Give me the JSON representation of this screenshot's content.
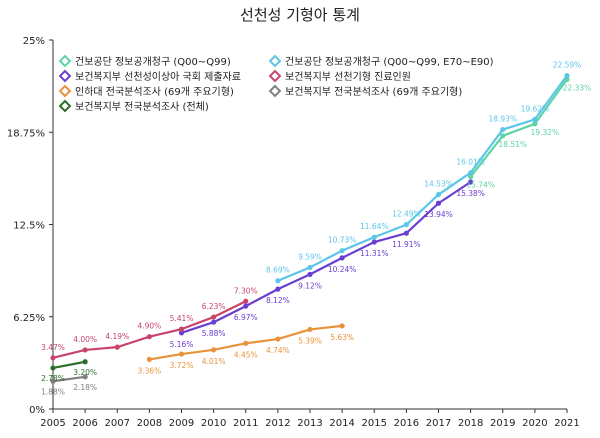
{
  "chart_data": {
    "type": "line",
    "title": "선천성 기형아 통계",
    "xlabel": "",
    "ylabel": "",
    "x": [
      "2005",
      "2006",
      "2007",
      "2008",
      "2009",
      "2010",
      "2011",
      "2012",
      "2013",
      "2014",
      "2015",
      "2016",
      "2017",
      "2018",
      "2019",
      "2020",
      "2021"
    ],
    "y_ticks": [
      "0%",
      "6.25%",
      "12.5%",
      "18.75%",
      "25%"
    ],
    "ylim": [
      0,
      25
    ],
    "grid": false,
    "legend_position": "top-left",
    "series": [
      {
        "name": "건보공단 정보공개청구 (Q00~Q99)",
        "color": "#5fd3a3",
        "points": [
          {
            "x": "2018",
            "y": 15.74,
            "label": "15.74%"
          },
          {
            "x": "2019",
            "y": 18.51,
            "label": "18.51%"
          },
          {
            "x": "2020",
            "y": 19.32,
            "label": "19.32%"
          },
          {
            "x": "2021",
            "y": 22.33,
            "label": "22.33%"
          }
        ]
      },
      {
        "name": "건보공단 정보공개청구 (Q00~Q99, E70~E90)",
        "color": "#5cc6e6",
        "points": [
          {
            "x": "2012",
            "y": 8.69,
            "label": "8.69%"
          },
          {
            "x": "2013",
            "y": 9.59,
            "label": "9.59%"
          },
          {
            "x": "2014",
            "y": 10.73,
            "label": "10.73%"
          },
          {
            "x": "2015",
            "y": 11.64,
            "label": "11.64%"
          },
          {
            "x": "2016",
            "y": 12.49,
            "label": "12.49%"
          },
          {
            "x": "2017",
            "y": 14.53,
            "label": "14.53%"
          },
          {
            "x": "2018",
            "y": 16.01,
            "label": "16.01%"
          },
          {
            "x": "2019",
            "y": 18.93,
            "label": "18.93%"
          },
          {
            "x": "2020",
            "y": 19.62,
            "label": "19.62%"
          },
          {
            "x": "2021",
            "y": 22.59,
            "label": "22.59%"
          }
        ]
      },
      {
        "name": "보건복지부 선천성이상아 국회 제출자료",
        "color": "#6a3fd0",
        "points": [
          {
            "x": "2009",
            "y": 5.16,
            "label": "5.16%"
          },
          {
            "x": "2010",
            "y": 5.88,
            "label": "5.88%"
          },
          {
            "x": "2011",
            "y": 6.97,
            "label": "6.97%"
          },
          {
            "x": "2012",
            "y": 8.12,
            "label": "8.12%"
          },
          {
            "x": "2013",
            "y": 9.12,
            "label": "9.12%"
          },
          {
            "x": "2014",
            "y": 10.24,
            "label": "10.24%"
          },
          {
            "x": "2015",
            "y": 11.31,
            "label": "11.31%"
          },
          {
            "x": "2016",
            "y": 11.91,
            "label": "11.91%"
          },
          {
            "x": "2017",
            "y": 13.94,
            "label": "13.94%"
          },
          {
            "x": "2018",
            "y": 15.38,
            "label": "15.38%"
          }
        ]
      },
      {
        "name": "보건복지부 선천기형 진료인원",
        "color": "#c8446a",
        "points": [
          {
            "x": "2005",
            "y": 3.47,
            "label": "3.47%"
          },
          {
            "x": "2006",
            "y": 4.0,
            "label": "4.00%"
          },
          {
            "x": "2007",
            "y": 4.19,
            "label": "4.19%"
          },
          {
            "x": "2008",
            "y": 4.9,
            "label": "4.90%"
          },
          {
            "x": "2009",
            "y": 5.41,
            "label": "5.41%"
          },
          {
            "x": "2010",
            "y": 6.23,
            "label": "6.23%"
          },
          {
            "x": "2011",
            "y": 7.3,
            "label": "7.30%"
          }
        ]
      },
      {
        "name": "인하대 전국분석조사 (69개 주요기형)",
        "color": "#e8933a",
        "points": [
          {
            "x": "2008",
            "y": 3.36,
            "label": "3.36%"
          },
          {
            "x": "2009",
            "y": 3.72,
            "label": "3.72%"
          },
          {
            "x": "2010",
            "y": 4.01,
            "label": "4.01%"
          },
          {
            "x": "2011",
            "y": 4.45,
            "label": "4.45%"
          },
          {
            "x": "2012",
            "y": 4.74,
            "label": "4.74%"
          },
          {
            "x": "2013",
            "y": 5.39,
            "label": "5.39%"
          },
          {
            "x": "2014",
            "y": 5.63,
            "label": "5.63%"
          }
        ]
      },
      {
        "name": "보건복지부 전국분석조사 (69개 주요기형)",
        "color": "#808080",
        "points": [
          {
            "x": "2005",
            "y": 1.88,
            "label": "1.88%"
          },
          {
            "x": "2006",
            "y": 2.18,
            "label": "2.18%"
          }
        ]
      },
      {
        "name": "보건복지부 전국분석조사 (전체)",
        "color": "#2a6e2a",
        "points": [
          {
            "x": "2005",
            "y": 2.78,
            "label": "2.78%"
          },
          {
            "x": "2006",
            "y": 3.2,
            "label": "3.20%"
          }
        ]
      }
    ]
  }
}
